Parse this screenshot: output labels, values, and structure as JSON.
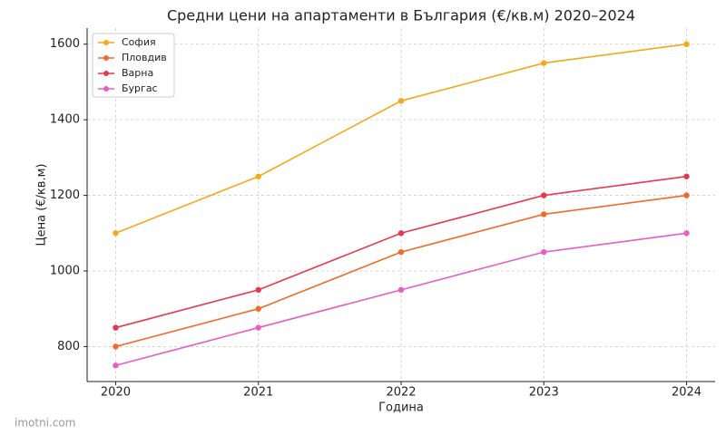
{
  "chart_data": {
    "type": "line",
    "title": "Средни цени на апартаменти в България (€/кв.м) 2020–2024",
    "x_label": "Година",
    "y_label": "Цена (€/кв.м)",
    "x": [
      2020,
      2021,
      2022,
      2023,
      2024
    ],
    "series": [
      {
        "name": "София",
        "color": "#f5a81c",
        "values": [
          1100,
          1250,
          1450,
          1550,
          1600
        ]
      },
      {
        "name": "Пловдив",
        "color": "#f06a2a",
        "values": [
          800,
          900,
          1050,
          1150,
          1200
        ]
      },
      {
        "name": "Варна",
        "color": "#e8384f",
        "values": [
          850,
          950,
          1100,
          1200,
          1250
        ]
      },
      {
        "name": "Бургас",
        "color": "#e85bc8",
        "values": [
          750,
          850,
          950,
          1050,
          1100
        ]
      }
    ],
    "xlim": [
      2019.8,
      2024.2
    ],
    "xticks": [
      2020,
      2021,
      2022,
      2023,
      2024
    ],
    "ylim": [
      707.5,
      1642.5
    ],
    "yticks": [
      800,
      1000,
      1200,
      1400,
      1600
    ],
    "grid": true,
    "legend": "upper-left"
  },
  "watermark": "imotni.com"
}
